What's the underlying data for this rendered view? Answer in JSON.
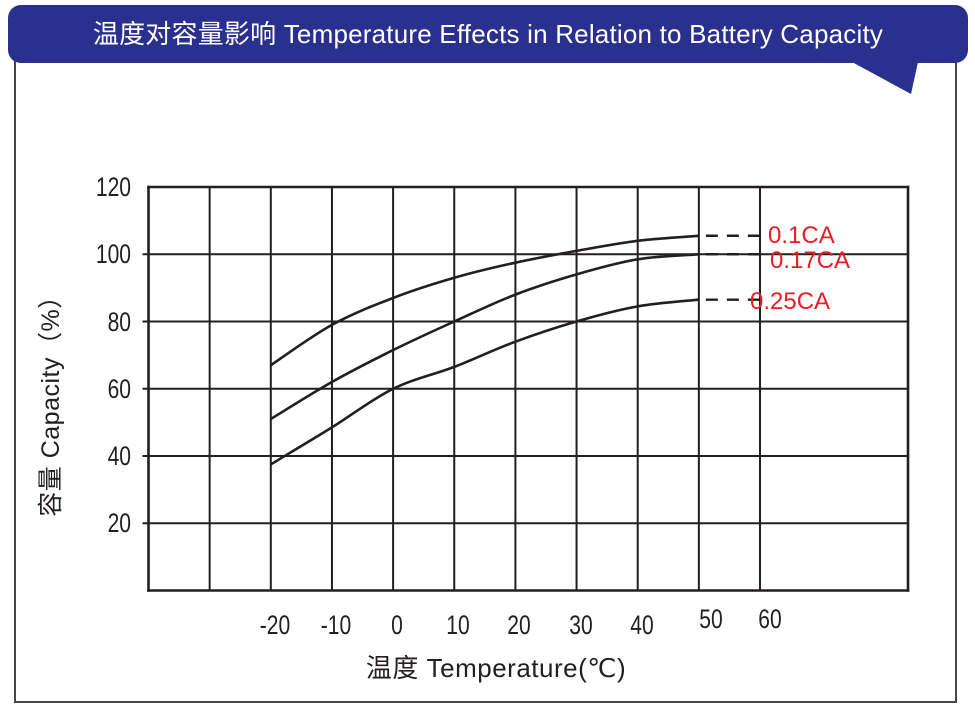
{
  "banner": {
    "title": "温度对容量影响  Temperature Effects in Relation to Battery Capacity"
  },
  "colors": {
    "banner_bg": "#2a308e",
    "banner_text": "#ffffff",
    "ink": "#231f20",
    "series_label": "#ec1c24",
    "frame_border": "#474747",
    "page_bg": "#ffffff"
  },
  "chart_data": {
    "type": "line",
    "title": "温度对容量影响 Temperature Effects in Relation to Battery Capacity",
    "xlabel": "温度  Temperature(℃)",
    "ylabel": "容量 Capacity（%）",
    "grid": true,
    "legend_position": "inline-right",
    "axes": {
      "x_min": -40,
      "x_grid_max": 60,
      "x_step": 10,
      "y_min": 0,
      "y_max": 120,
      "y_step": 20
    },
    "x_ticks": [
      -20,
      -10,
      0,
      10,
      20,
      30,
      40,
      50,
      60
    ],
    "y_ticks": [
      120,
      100,
      80,
      60,
      40,
      20
    ],
    "series": [
      {
        "name": "0.1CA",
        "x": [
          -20,
          -10,
          0,
          10,
          20,
          30,
          40,
          50
        ],
        "y": [
          67,
          79,
          87,
          93,
          97.5,
          101,
          104,
          105.5
        ],
        "dash_to_x": 60
      },
      {
        "name": "0.17CA",
        "x": [
          -20,
          -10,
          0,
          10,
          20,
          30,
          40,
          50
        ],
        "y": [
          51,
          62,
          71.5,
          80,
          88,
          94,
          98.5,
          100
        ],
        "dash_to_x": 60
      },
      {
        "name": "0.25CA",
        "x": [
          -20,
          -10,
          0,
          10,
          20,
          30,
          40,
          50
        ],
        "y": [
          37.5,
          48.5,
          60,
          66.5,
          74,
          80,
          84.5,
          86.5
        ],
        "dash_to_x": 60
      }
    ]
  }
}
